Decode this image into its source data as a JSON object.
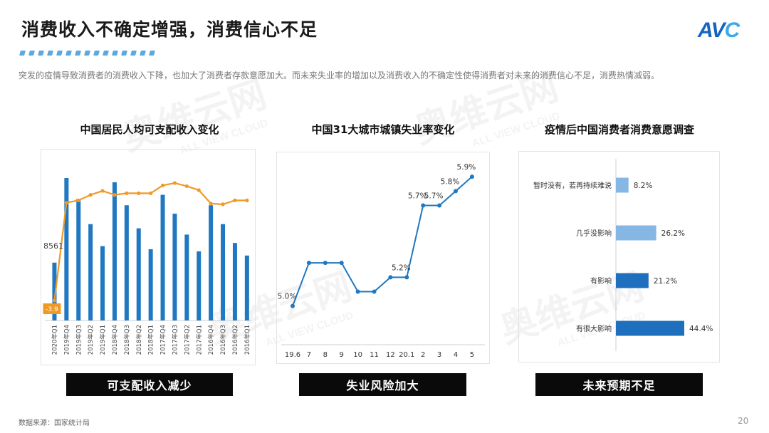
{
  "header": {
    "title": "消费收入不确定增强，消费信心不足",
    "subtitle": "突发的疫情导致消费者的消费收入下降，也加大了消费者存款意愿加大。而未来失业率的增加以及消费收入的不确定性使得消费者对未来的消费信心不足，消费热情减弱。",
    "logo_main": "AV",
    "logo_tail": "C"
  },
  "watermark": {
    "brand": "奥维云网",
    "tagline": "ALL VIEW CLOUD"
  },
  "charts": [
    {
      "title": "中国居民人均可支配收入变化",
      "banner": "可支配收入减少"
    },
    {
      "title": "中国31大城市城镇失业率变化",
      "banner": "失业风险加大"
    },
    {
      "title": "疫情后中国消费者消费意愿调查",
      "banner": "未来预期不足"
    }
  ],
  "colors": {
    "bar_blue": "#1f78c1",
    "line_orange": "#f09a26",
    "hbar_light": "#86b7e4",
    "hbar_dark": "#1f6fbf",
    "banner_bg": "#0a0a0a"
  },
  "chart_data": [
    {
      "type": "bar",
      "title": "中国居民人均可支配收入变化",
      "categories": [
        "2020年Q1",
        "2019年Q4",
        "2019年Q3",
        "2019年Q2",
        "2019年Q1",
        "2018年Q4",
        "2018年Q3",
        "2018年Q2",
        "2018年Q1",
        "2017年Q4",
        "2017年Q3",
        "2017年Q2",
        "2017年Q1",
        "2016年Q4",
        "2016年Q3",
        "2016年Q2",
        "2016年Q1"
      ],
      "series": [
        {
          "values": [
            8561,
            12600,
            11600,
            10400,
            9350,
            12400,
            11300,
            10200,
            9200,
            11800,
            10900,
            9900,
            9100,
            11300,
            10400,
            9500,
            8900
          ]
        },
        {
          "values": [
            -3.9,
            8.5,
            8.8,
            9.5,
            10.0,
            9.5,
            9.7,
            9.7,
            9.7,
            10.7,
            11.0,
            10.6,
            10.1,
            8.4,
            8.3,
            8.8,
            8.8
          ]
        }
      ],
      "data_labels": [
        "8561",
        "-3.9"
      ]
    },
    {
      "type": "line",
      "title": "中国31大城市城镇失业率变化",
      "x": [
        "19.6",
        "7",
        "8",
        "9",
        "10",
        "11",
        "12",
        "20.1",
        "2",
        "3",
        "4",
        "5"
      ],
      "values": [
        5.0,
        5.3,
        5.3,
        5.3,
        5.1,
        5.1,
        5.2,
        5.2,
        5.7,
        5.7,
        5.8,
        5.9
      ],
      "data_labels": [
        {
          "index": 0,
          "text": "5.0%"
        },
        {
          "index": 7,
          "text": "5.2%"
        },
        {
          "index": 8,
          "text": "5.7%"
        },
        {
          "index": 9,
          "text": "5.7%"
        },
        {
          "index": 10,
          "text": "5.8%"
        },
        {
          "index": 11,
          "text": "5.9%"
        }
      ]
    },
    {
      "type": "bar",
      "orientation": "horizontal",
      "title": "疫情后中国消费者消费意愿调查",
      "categories": [
        "暂时没有，若再持续难说",
        "几乎没影响",
        "有影响",
        "有很大影响"
      ],
      "values": [
        8.2,
        26.2,
        21.2,
        44.4
      ],
      "labels": [
        "8.2%",
        "26.2%",
        "21.2%",
        "44.4%"
      ]
    }
  ],
  "footer": {
    "source": "数据来源：国家统计局",
    "page": "20"
  }
}
